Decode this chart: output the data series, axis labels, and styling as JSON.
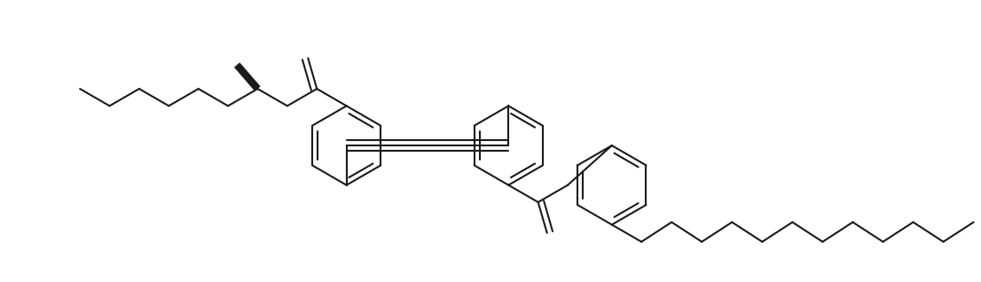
{
  "bg_color": "#ffffff",
  "line_color": "#1a1a1a",
  "line_width": 1.5,
  "fig_width": 11.06,
  "fig_height": 3.18,
  "dpi": 100
}
